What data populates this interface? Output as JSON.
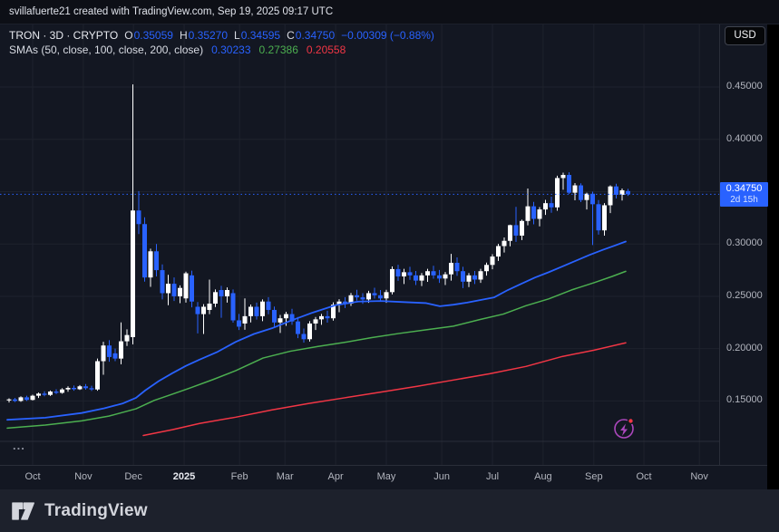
{
  "topbar": {
    "attribution": "svillafuerte21 created with TradingView.com, Sep 19, 2025 09:17 UTC"
  },
  "legend": {
    "title": "TRON · 3D · CRYPTO",
    "ohlc": [
      [
        "O",
        "0.35059"
      ],
      [
        "H",
        "0.35270"
      ],
      [
        "L",
        "0.34595"
      ],
      [
        "C",
        "0.34750"
      ]
    ],
    "change": "−0.00309 (−0.88%)",
    "sma_label": "SMAs (50, close, 100, close, 200, close)",
    "sma_values": [
      "0.30233",
      "0.27386",
      "0.20558"
    ]
  },
  "price_axis": {
    "currency": "USD",
    "labels": [
      "0.45000",
      "0.40000",
      "0.35000",
      "0.30000",
      "0.25000",
      "0.20000",
      "0.15000"
    ],
    "badge": {
      "price": "0.34750",
      "countdown": "2d 15h"
    }
  },
  "time_axis": {
    "months": [
      {
        "label": "Oct",
        "i": 4.0
      },
      {
        "label": "Nov",
        "i": 12.6
      },
      {
        "label": "Dec",
        "i": 21.1
      },
      {
        "label": "2025",
        "i": 29.7,
        "bold": true
      },
      {
        "label": "Feb",
        "i": 39.1
      },
      {
        "label": "Mar",
        "i": 46.8
      },
      {
        "label": "Apr",
        "i": 55.4
      },
      {
        "label": "May",
        "i": 64.0
      },
      {
        "label": "Jun",
        "i": 73.4
      },
      {
        "label": "Jul",
        "i": 82.0
      },
      {
        "label": "Aug",
        "i": 90.6
      },
      {
        "label": "Sep",
        "i": 99.2
      },
      {
        "label": "Oct",
        "i": 107.7
      },
      {
        "label": "Nov",
        "i": 117.1
      }
    ]
  },
  "footer": {
    "ellipsis": "...",
    "logo_text": "TradingView"
  },
  "colors": {
    "background": "#131722",
    "grid": "#1e222d",
    "axis_text": "#b2b5be",
    "up_candle": "#ffffff",
    "down_candle": "#2962ff",
    "sma50": "#2962ff",
    "sma100": "#4caf50",
    "sma200": "#f23645",
    "price_line": "#2962ff",
    "badge": "#2962ff",
    "flash_icon": "#ab47bc",
    "flash_dot": "#f23645"
  },
  "chart_data": {
    "type": "candlestick",
    "symbol": "TRON",
    "interval": "3D",
    "exchange": "CRYPTO",
    "currency": "USD",
    "last": {
      "open": 0.35059,
      "high": 0.3527,
      "low": 0.34595,
      "close": 0.3475,
      "change": -0.00309,
      "change_pct": -0.88
    },
    "sma_settings": {
      "sma50": 0.30233,
      "sma100": 0.27386,
      "sma200": 0.20558
    },
    "price_line": 0.3475,
    "y_gridlines": [
      0.45,
      0.4,
      0.35,
      0.3,
      0.25,
      0.2,
      0.15
    ],
    "y_range": [
      0.111,
      0.509
    ],
    "x_range_note": "3-day candles, late Sep 2024 through Sep 19 2025",
    "candles": [
      [
        0.1505,
        0.1525,
        0.1485,
        0.1515
      ],
      [
        0.1515,
        0.153,
        0.149,
        0.15
      ],
      [
        0.15,
        0.1545,
        0.1492,
        0.1535
      ],
      [
        0.1535,
        0.155,
        0.15,
        0.151
      ],
      [
        0.151,
        0.156,
        0.1505,
        0.155
      ],
      [
        0.155,
        0.158,
        0.1528,
        0.157
      ],
      [
        0.157,
        0.1592,
        0.1545,
        0.1558
      ],
      [
        0.1558,
        0.16,
        0.1548,
        0.159
      ],
      [
        0.159,
        0.1612,
        0.1565,
        0.1578
      ],
      [
        0.1578,
        0.1622,
        0.157,
        0.161
      ],
      [
        0.161,
        0.164,
        0.1588,
        0.1625
      ],
      [
        0.1625,
        0.1648,
        0.1598,
        0.1612
      ],
      [
        0.1612,
        0.1652,
        0.1605,
        0.164
      ],
      [
        0.164,
        0.1662,
        0.1608,
        0.1622
      ],
      [
        0.1622,
        0.1645,
        0.1596,
        0.161
      ],
      [
        0.161,
        0.1905,
        0.1598,
        0.188
      ],
      [
        0.188,
        0.2065,
        0.175,
        0.203
      ],
      [
        0.203,
        0.208,
        0.1875,
        0.192
      ],
      [
        0.1955,
        0.2,
        0.188,
        0.1905
      ],
      [
        0.1905,
        0.225,
        0.185,
        0.207
      ],
      [
        0.207,
        0.2185,
        0.2025,
        0.213
      ],
      [
        0.211,
        0.4525,
        0.204,
        0.332
      ],
      [
        0.332,
        0.3505,
        0.3095,
        0.319
      ],
      [
        0.319,
        0.3255,
        0.264,
        0.268
      ],
      [
        0.268,
        0.2955,
        0.259,
        0.293
      ],
      [
        0.293,
        0.3,
        0.269,
        0.275
      ],
      [
        0.275,
        0.2805,
        0.247,
        0.253
      ],
      [
        0.253,
        0.2705,
        0.2415,
        0.262
      ],
      [
        0.262,
        0.268,
        0.2455,
        0.25
      ],
      [
        0.25,
        0.2605,
        0.2435,
        0.258
      ],
      [
        0.248,
        0.2735,
        0.244,
        0.272
      ],
      [
        0.27,
        0.2745,
        0.2395,
        0.245
      ],
      [
        0.24,
        0.2445,
        0.2145,
        0.233
      ],
      [
        0.233,
        0.2425,
        0.214,
        0.24
      ],
      [
        0.237,
        0.266,
        0.233,
        0.243
      ],
      [
        0.243,
        0.2565,
        0.2398,
        0.254
      ],
      [
        0.256,
        0.26,
        0.2295,
        0.25
      ],
      [
        0.25,
        0.2585,
        0.244,
        0.256
      ],
      [
        0.253,
        0.2565,
        0.2248,
        0.227
      ],
      [
        0.227,
        0.2332,
        0.2178,
        0.221
      ],
      [
        0.224,
        0.248,
        0.218,
        0.231
      ],
      [
        0.231,
        0.2422,
        0.225,
        0.24
      ],
      [
        0.24,
        0.244,
        0.2278,
        0.231
      ],
      [
        0.231,
        0.247,
        0.2262,
        0.245
      ],
      [
        0.245,
        0.2492,
        0.2328,
        0.237
      ],
      [
        0.237,
        0.2402,
        0.2198,
        0.225
      ],
      [
        0.225,
        0.2322,
        0.215,
        0.229
      ],
      [
        0.229,
        0.2352,
        0.2218,
        0.233
      ],
      [
        0.233,
        0.238,
        0.2228,
        0.226
      ],
      [
        0.226,
        0.2302,
        0.21,
        0.214
      ],
      [
        0.214,
        0.2192,
        0.2058,
        0.209
      ],
      [
        0.209,
        0.2262,
        0.2068,
        0.224
      ],
      [
        0.224,
        0.2302,
        0.2178,
        0.228
      ],
      [
        0.228,
        0.2332,
        0.2228,
        0.231
      ],
      [
        0.231,
        0.2362,
        0.2248,
        0.229
      ],
      [
        0.229,
        0.2442,
        0.2268,
        0.242
      ],
      [
        0.242,
        0.2472,
        0.2348,
        0.245
      ],
      [
        0.245,
        0.2492,
        0.2388,
        0.243
      ],
      [
        0.243,
        0.2532,
        0.2408,
        0.251
      ],
      [
        0.251,
        0.2562,
        0.2458,
        0.249
      ],
      [
        0.249,
        0.253,
        0.2428,
        0.247
      ],
      [
        0.247,
        0.2552,
        0.2438,
        0.253
      ],
      [
        0.253,
        0.2582,
        0.2478,
        0.251
      ],
      [
        0.251,
        0.256,
        0.2448,
        0.248
      ],
      [
        0.248,
        0.2562,
        0.2438,
        0.254
      ],
      [
        0.254,
        0.2785,
        0.2518,
        0.276
      ],
      [
        0.276,
        0.2802,
        0.2648,
        0.269
      ],
      [
        0.269,
        0.2762,
        0.2618,
        0.273
      ],
      [
        0.273,
        0.2782,
        0.2658,
        0.27
      ],
      [
        0.27,
        0.2742,
        0.2608,
        0.265
      ],
      [
        0.265,
        0.2722,
        0.2598,
        0.27
      ],
      [
        0.27,
        0.2762,
        0.2638,
        0.274
      ],
      [
        0.274,
        0.2792,
        0.2668,
        0.27
      ],
      [
        0.27,
        0.2752,
        0.2628,
        0.267
      ],
      [
        0.267,
        0.2732,
        0.2608,
        0.271
      ],
      [
        0.271,
        0.2905,
        0.265,
        0.282
      ],
      [
        0.282,
        0.2872,
        0.2695,
        0.274
      ],
      [
        0.274,
        0.2782,
        0.2578,
        0.264
      ],
      [
        0.264,
        0.2722,
        0.2588,
        0.27
      ],
      [
        0.27,
        0.2742,
        0.2618,
        0.266
      ],
      [
        0.266,
        0.2762,
        0.2628,
        0.274
      ],
      [
        0.274,
        0.2822,
        0.2698,
        0.28
      ],
      [
        0.28,
        0.2902,
        0.2758,
        0.288
      ],
      [
        0.288,
        0.3002,
        0.2838,
        0.298
      ],
      [
        0.298,
        0.3062,
        0.2918,
        0.303
      ],
      [
        0.303,
        0.3185,
        0.2978,
        0.318
      ],
      [
        0.318,
        0.3355,
        0.302,
        0.308
      ],
      [
        0.308,
        0.3232,
        0.3038,
        0.322
      ],
      [
        0.322,
        0.353,
        0.3178,
        0.336
      ],
      [
        0.336,
        0.3402,
        0.3188,
        0.324
      ],
      [
        0.324,
        0.3352,
        0.3168,
        0.333
      ],
      [
        0.333,
        0.3422,
        0.3278,
        0.339
      ],
      [
        0.339,
        0.3452,
        0.3298,
        0.335
      ],
      [
        0.335,
        0.3652,
        0.3318,
        0.363
      ],
      [
        0.363,
        0.3682,
        0.3518,
        0.366
      ],
      [
        0.366,
        0.3685,
        0.3478,
        0.349
      ],
      [
        0.349,
        0.3582,
        0.3418,
        0.356
      ],
      [
        0.356,
        0.358,
        0.34,
        0.342
      ],
      [
        0.342,
        0.349,
        0.333,
        0.348
      ],
      [
        0.348,
        0.35,
        0.299,
        0.338
      ],
      [
        0.338,
        0.342,
        0.309,
        0.313
      ],
      [
        0.313,
        0.339,
        0.308,
        0.337
      ],
      [
        0.337,
        0.356,
        0.3295,
        0.355
      ],
      [
        0.355,
        0.3575,
        0.3435,
        0.347
      ],
      [
        0.347,
        0.353,
        0.3415,
        0.3513
      ],
      [
        0.35059,
        0.3527,
        0.34595,
        0.3475
      ]
    ],
    "sma50_points": [
      [
        8,
        0.132
      ],
      [
        50,
        0.134
      ],
      [
        90,
        0.1385
      ],
      [
        115,
        0.143
      ],
      [
        135,
        0.1475
      ],
      [
        150,
        0.153
      ],
      [
        160,
        0.16
      ],
      [
        175,
        0.169
      ],
      [
        190,
        0.1765
      ],
      [
        205,
        0.1835
      ],
      [
        220,
        0.1895
      ],
      [
        240,
        0.197
      ],
      [
        260,
        0.2065
      ],
      [
        280,
        0.214
      ],
      [
        300,
        0.2195
      ],
      [
        320,
        0.2265
      ],
      [
        345,
        0.2345
      ],
      [
        370,
        0.2415
      ],
      [
        395,
        0.245
      ],
      [
        420,
        0.2455
      ],
      [
        445,
        0.2445
      ],
      [
        470,
        0.2435
      ],
      [
        485,
        0.2405
      ],
      [
        500,
        0.242
      ],
      [
        515,
        0.244
      ],
      [
        530,
        0.2465
      ],
      [
        545,
        0.249
      ],
      [
        560,
        0.256
      ],
      [
        575,
        0.262
      ],
      [
        590,
        0.268
      ],
      [
        605,
        0.273
      ],
      [
        620,
        0.2785
      ],
      [
        635,
        0.284
      ],
      [
        650,
        0.2895
      ],
      [
        665,
        0.2945
      ],
      [
        678,
        0.2985
      ],
      [
        690,
        0.30233
      ]
    ],
    "sma100_points": [
      [
        8,
        0.124
      ],
      [
        50,
        0.127
      ],
      [
        90,
        0.131
      ],
      [
        120,
        0.1355
      ],
      [
        150,
        0.1425
      ],
      [
        170,
        0.1505
      ],
      [
        190,
        0.1565
      ],
      [
        210,
        0.1625
      ],
      [
        235,
        0.1705
      ],
      [
        260,
        0.179
      ],
      [
        290,
        0.191
      ],
      [
        320,
        0.1975
      ],
      [
        350,
        0.202
      ],
      [
        380,
        0.206
      ],
      [
        410,
        0.2105
      ],
      [
        440,
        0.2145
      ],
      [
        470,
        0.218
      ],
      [
        500,
        0.2215
      ],
      [
        530,
        0.228
      ],
      [
        555,
        0.233
      ],
      [
        580,
        0.241
      ],
      [
        605,
        0.2475
      ],
      [
        630,
        0.256
      ],
      [
        655,
        0.263
      ],
      [
        675,
        0.269
      ],
      [
        690,
        0.27386
      ]
    ],
    "sma200_points": [
      [
        158,
        0.117
      ],
      [
        190,
        0.1225
      ],
      [
        220,
        0.1285
      ],
      [
        260,
        0.1345
      ],
      [
        300,
        0.1415
      ],
      [
        340,
        0.1475
      ],
      [
        380,
        0.153
      ],
      [
        420,
        0.1585
      ],
      [
        460,
        0.164
      ],
      [
        500,
        0.17
      ],
      [
        540,
        0.176
      ],
      [
        580,
        0.183
      ],
      [
        620,
        0.1925
      ],
      [
        655,
        0.1985
      ],
      [
        690,
        0.20558
      ]
    ]
  }
}
